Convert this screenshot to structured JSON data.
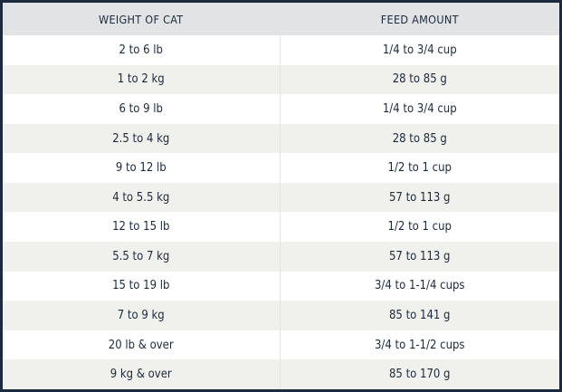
{
  "table": {
    "headers": [
      "WEIGHT OF CAT",
      "FEED AMOUNT"
    ],
    "rows": [
      [
        "2 to 6 lb",
        "1/4 to 3/4 cup"
      ],
      [
        "1 to 2 kg",
        "28 to 85 g"
      ],
      [
        "6 to 9 lb",
        "1/4 to 3/4 cup"
      ],
      [
        "2.5 to 4 kg",
        "28 to 85 g"
      ],
      [
        "9 to 12 lb",
        "1/2 to 1 cup"
      ],
      [
        "4 to 5.5 kg",
        "57 to 113 g"
      ],
      [
        "12 to 15 lb",
        "1/2 to 1 cup"
      ],
      [
        "5.5 to 7 kg",
        "57 to 113 g"
      ],
      [
        "15 to 19 lb",
        "3/4 to 1-1/4 cups"
      ],
      [
        "7 to 9 kg",
        "85 to 141 g"
      ],
      [
        "20 lb & over",
        "3/4 to 1-1/2 cups"
      ],
      [
        "9 kg & over",
        "85 to 170 g"
      ]
    ]
  },
  "colors": {
    "border": "#1b2a3e",
    "header_bg": "#e1e3e4",
    "text": "#1b2a3e",
    "row_white": "#ffffff",
    "row_alt": "#f0f0ec"
  }
}
